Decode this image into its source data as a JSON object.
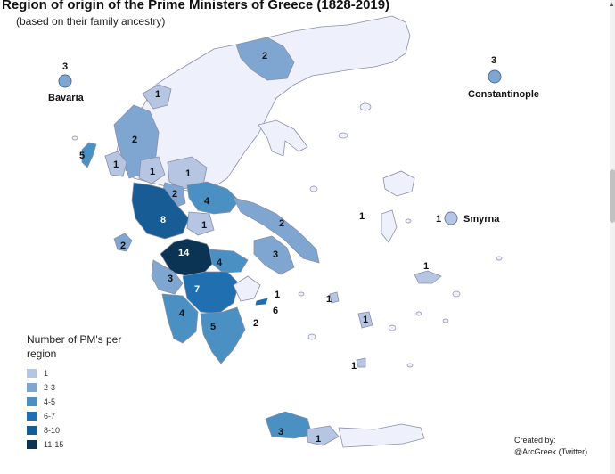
{
  "title": "Region of origin of the Prime Ministers of Greece (1828-2019)",
  "subtitle": "(based on their family ancestry)",
  "colors": {
    "c1": "#b6c6e2",
    "c2": "#7fa6d0",
    "c3": "#4a90c2",
    "c4": "#1f6fb1",
    "c5": "#185c96",
    "c6": "#0b3353",
    "base": "#eef0fb",
    "border": "#8a8fa8"
  },
  "regions": [
    {
      "name": "Bavaria",
      "count": "3"
    },
    {
      "name": "Constantinople",
      "count": "3"
    },
    {
      "name": "Smyrna",
      "count": "1"
    }
  ],
  "map_labels": [
    "2",
    "1",
    "2",
    "5",
    "1",
    "1",
    "1",
    "2",
    "4",
    "8",
    "1",
    "2",
    "2",
    "14",
    "4",
    "3",
    "3",
    "7",
    "1",
    "6",
    "4",
    "5",
    "2",
    "1",
    "1",
    "1",
    "1",
    "1",
    "3",
    "1"
  ],
  "legend": {
    "title": "Number of PM's per region",
    "items": [
      {
        "label": "1",
        "color": "#b6c6e2"
      },
      {
        "label": "2-3",
        "color": "#7fa6d0"
      },
      {
        "label": "4-5",
        "color": "#4a90c2"
      },
      {
        "label": "6-7",
        "color": "#1f6fb1"
      },
      {
        "label": "8-10",
        "color": "#185c96"
      },
      {
        "label": "11-15",
        "color": "#0b3353"
      }
    ]
  },
  "credit": {
    "line1": "Created by:",
    "line2": "@ArcGreek (Twitter)"
  }
}
